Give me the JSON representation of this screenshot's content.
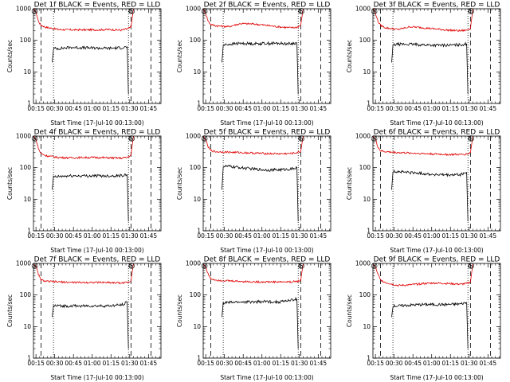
{
  "figure": {
    "panel_titles": [
      "Det 1f BLACK = Events, RED = LLD",
      "Det 2f BLACK = Events, RED = LLD",
      "Det 3f BLACK = Events, RED = LLD",
      "Det 4f BLACK = Events, RED = LLD",
      "Det 5f BLACK = Events, RED = LLD",
      "Det 6f BLACK = Events, RED = LLD",
      "Det 7f BLACK = Events, RED = LLD",
      "Det 8f BLACK = Events, RED = LLD",
      "Det 9f BLACK = Events, RED = LLD"
    ],
    "xlabel": "Start Time (17-Jul-10 00:13:00)",
    "ylabel": "Counts/sec",
    "marker_labels": [
      "S",
      "S"
    ],
    "colors": {
      "events": "#000000",
      "lld": "#e00000",
      "axes": "#000000",
      "background": "#ffffff"
    }
  },
  "chart_data": {
    "type": "line",
    "layout": "3x3 grid",
    "x_unit": "minutes after 00:13:00",
    "xlim": [
      0,
      102
    ],
    "ylim": [
      1,
      1000
    ],
    "yscale": "log",
    "x_ticks": [
      {
        "label": "00:15",
        "value": 2
      },
      {
        "label": "00:30",
        "value": 17
      },
      {
        "label": "00:45",
        "value": 32
      },
      {
        "label": "01:00",
        "value": 47
      },
      {
        "label": "01:15",
        "value": 62
      },
      {
        "label": "01:30",
        "value": 77
      },
      {
        "label": "01:45",
        "value": 92
      }
    ],
    "y_ticks": [
      {
        "label": "1",
        "value": 1
      },
      {
        "label": "10",
        "value": 10
      },
      {
        "label": "100",
        "value": 100
      },
      {
        "label": "1000",
        "value": 1000
      }
    ],
    "legend": "none (colors stated in titles)",
    "grid": false,
    "vertical_lines": {
      "dashed": [
        6,
        78,
        94
      ],
      "dotted": [
        16,
        76
      ]
    },
    "panels": [
      {
        "detector": "1f",
        "series": [
          {
            "name": "RED = LLD",
            "color": "#e00000",
            "x": [
              0,
              2,
              4,
              6,
              10,
              20,
              30,
              40,
              50,
              60,
              70,
              75,
              78,
              80
            ],
            "y": [
              1000,
              800,
              400,
              300,
              260,
              220,
              215,
              215,
              215,
              220,
              210,
              230,
              260,
              1000
            ]
          },
          {
            "name": "BLACK = Events",
            "color": "#000000",
            "x": [
              15,
              16,
              20,
              30,
              40,
              50,
              60,
              70,
              75,
              76
            ],
            "y": [
              20,
              55,
              55,
              60,
              58,
              57,
              56,
              58,
              62,
              2
            ]
          }
        ]
      },
      {
        "detector": "2f",
        "series": [
          {
            "name": "RED = LLD",
            "color": "#e00000",
            "x": [
              0,
              2,
              4,
              6,
              10,
              20,
              30,
              40,
              50,
              60,
              70,
              75,
              78,
              80
            ],
            "y": [
              1000,
              700,
              400,
              320,
              290,
              270,
              340,
              330,
              300,
              270,
              250,
              260,
              300,
              1000
            ]
          },
          {
            "name": "BLACK = Events",
            "color": "#000000",
            "x": [
              15,
              16,
              20,
              30,
              40,
              50,
              60,
              70,
              75,
              76
            ],
            "y": [
              20,
              70,
              75,
              80,
              78,
              80,
              80,
              78,
              82,
              2
            ]
          }
        ]
      },
      {
        "detector": "3f",
        "series": [
          {
            "name": "RED = LLD",
            "color": "#e00000",
            "x": [
              0,
              2,
              4,
              6,
              10,
              20,
              30,
              40,
              50,
              60,
              70,
              75,
              78,
              80
            ],
            "y": [
              1000,
              750,
              400,
              300,
              250,
              220,
              270,
              250,
              230,
              210,
              200,
              210,
              240,
              1000
            ]
          },
          {
            "name": "BLACK = Events",
            "color": "#000000",
            "x": [
              15,
              16,
              20,
              30,
              40,
              50,
              60,
              70,
              75,
              76
            ],
            "y": [
              20,
              70,
              75,
              75,
              72,
              70,
              70,
              72,
              78,
              2
            ]
          }
        ]
      },
      {
        "detector": "4f",
        "series": [
          {
            "name": "RED = LLD",
            "color": "#e00000",
            "x": [
              0,
              2,
              4,
              6,
              10,
              20,
              30,
              40,
              50,
              60,
              70,
              75,
              78,
              80
            ],
            "y": [
              1000,
              800,
              400,
              280,
              240,
              210,
              205,
              210,
              210,
              205,
              200,
              210,
              250,
              1000
            ]
          },
          {
            "name": "BLACK = Events",
            "color": "#000000",
            "x": [
              15,
              16,
              20,
              30,
              40,
              50,
              60,
              70,
              75,
              76
            ],
            "y": [
              20,
              50,
              52,
              55,
              55,
              55,
              55,
              56,
              60,
              2
            ]
          }
        ]
      },
      {
        "detector": "5f",
        "series": [
          {
            "name": "RED = LLD",
            "color": "#e00000",
            "x": [
              0,
              2,
              4,
              6,
              10,
              20,
              30,
              40,
              50,
              60,
              70,
              75,
              78,
              80
            ],
            "y": [
              1000,
              750,
              450,
              350,
              320,
              310,
              300,
              290,
              280,
              275,
              280,
              300,
              320,
              1000
            ]
          },
          {
            "name": "BLACK = Events",
            "color": "#000000",
            "x": [
              15,
              16,
              20,
              30,
              40,
              50,
              60,
              70,
              75,
              76
            ],
            "y": [
              20,
              110,
              110,
              100,
              90,
              85,
              85,
              90,
              100,
              2
            ]
          }
        ]
      },
      {
        "detector": "6f",
        "series": [
          {
            "name": "RED = LLD",
            "color": "#e00000",
            "x": [
              0,
              2,
              4,
              6,
              10,
              20,
              30,
              40,
              50,
              60,
              70,
              75,
              78,
              80
            ],
            "y": [
              1000,
              800,
              450,
              340,
              320,
              300,
              290,
              280,
              270,
              260,
              260,
              270,
              300,
              1000
            ]
          },
          {
            "name": "BLACK = Events",
            "color": "#000000",
            "x": [
              15,
              16,
              20,
              30,
              40,
              50,
              60,
              70,
              75,
              76
            ],
            "y": [
              20,
              75,
              75,
              70,
              65,
              60,
              58,
              60,
              70,
              2
            ]
          }
        ]
      },
      {
        "detector": "7f",
        "series": [
          {
            "name": "RED = LLD",
            "color": "#e00000",
            "x": [
              0,
              2,
              4,
              6,
              10,
              20,
              30,
              40,
              50,
              60,
              70,
              75,
              78,
              80
            ],
            "y": [
              1000,
              800,
              450,
              300,
              270,
              260,
              250,
              250,
              250,
              250,
              240,
              250,
              280,
              1000
            ]
          },
          {
            "name": "BLACK = Events",
            "color": "#000000",
            "x": [
              15,
              16,
              20,
              30,
              40,
              50,
              60,
              70,
              75,
              76
            ],
            "y": [
              20,
              45,
              45,
              45,
              45,
              45,
              45,
              48,
              60,
              2
            ]
          }
        ]
      },
      {
        "detector": "8f",
        "series": [
          {
            "name": "RED = LLD",
            "color": "#e00000",
            "x": [
              0,
              2,
              4,
              6,
              10,
              20,
              30,
              40,
              50,
              60,
              70,
              75,
              78,
              80
            ],
            "y": [
              1000,
              750,
              450,
              330,
              300,
              280,
              270,
              260,
              260,
              260,
              260,
              270,
              290,
              1000
            ]
          },
          {
            "name": "BLACK = Events",
            "color": "#000000",
            "x": [
              15,
              16,
              20,
              30,
              40,
              50,
              60,
              70,
              75,
              76
            ],
            "y": [
              20,
              55,
              58,
              60,
              60,
              62,
              60,
              68,
              75,
              2
            ]
          }
        ]
      },
      {
        "detector": "9f",
        "series": [
          {
            "name": "RED = LLD",
            "color": "#e00000",
            "x": [
              0,
              2,
              4,
              6,
              10,
              20,
              30,
              40,
              50,
              60,
              70,
              75,
              78,
              80
            ],
            "y": [
              1000,
              750,
              450,
              300,
              250,
              200,
              210,
              230,
              240,
              230,
              220,
              230,
              260,
              1000
            ]
          },
          {
            "name": "BLACK = Events",
            "color": "#000000",
            "x": [
              15,
              16,
              20,
              30,
              40,
              50,
              60,
              70,
              75,
              76
            ],
            "y": [
              20,
              45,
              45,
              48,
              50,
              50,
              50,
              52,
              58,
              2
            ]
          }
        ]
      }
    ]
  }
}
